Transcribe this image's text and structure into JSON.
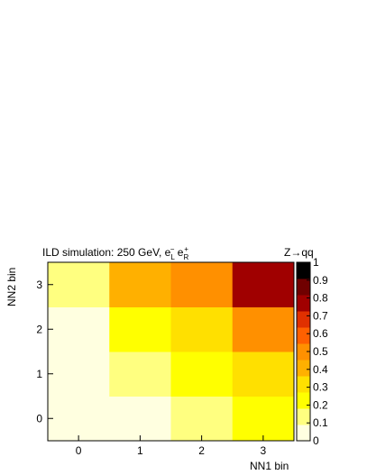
{
  "chart_data": {
    "type": "heatmap",
    "title": "ILD simulation: 250 GeV, e",
    "title_sub1": "L",
    "title_sup1": "−",
    "title_mid": " e",
    "title_sub2": "R",
    "title_sup2": "+",
    "annotation": "Z→qq",
    "xlabel": "NN1 bin",
    "ylabel": "NN2 bin",
    "x_categories": [
      "0",
      "1",
      "2",
      "3"
    ],
    "y_categories": [
      "0",
      "1",
      "2",
      "3"
    ],
    "values": [
      [
        0.04,
        0.05,
        0.13,
        0.24
      ],
      [
        0.04,
        0.13,
        0.2,
        0.31
      ],
      [
        0.04,
        0.22,
        0.32,
        0.5
      ],
      [
        0.18,
        0.46,
        0.53,
        0.82
      ]
    ],
    "zlim": [
      0,
      1
    ],
    "colorbar_ticks": [
      "0",
      "0.1",
      "0.2",
      "0.3",
      "0.4",
      "0.5",
      "0.6",
      "0.7",
      "0.8",
      "0.9",
      "1"
    ],
    "grid": false,
    "colormap": [
      "#ffffe0",
      "#ffff80",
      "#ffff00",
      "#ffe000",
      "#ffb000",
      "#ff9000",
      "#ff6000",
      "#e03000",
      "#a00000",
      "#700000",
      "#000000"
    ]
  }
}
